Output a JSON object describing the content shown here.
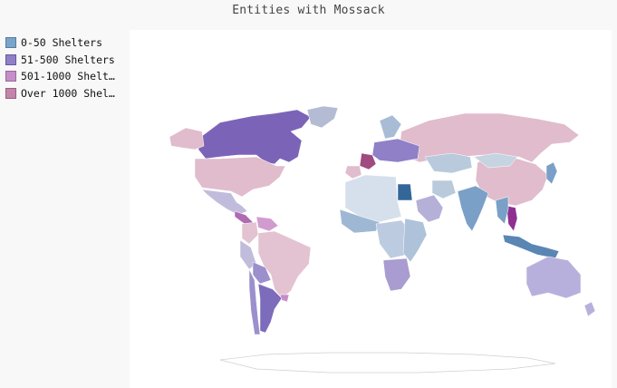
{
  "chart_data": {
    "type": "choropleth-map",
    "title": "Entities with Mossack",
    "legend_position": "top-left",
    "legend": [
      {
        "label": "0-50 Shelters",
        "color": "#7aa4c8"
      },
      {
        "label": "51-500 Shelters",
        "color": "#8f80c8"
      },
      {
        "label": "501-1000 Shelt…",
        "color": "#c58ec8"
      },
      {
        "label": "Over 1000 Shel…",
        "color": "#c286aa"
      }
    ],
    "regions": [
      {
        "name": "Canada",
        "category": "51-500 Shelters",
        "fill": "#7b64b8"
      },
      {
        "name": "Greenland",
        "category": "0-50 Shelters",
        "fill": "#b4bcd4"
      },
      {
        "name": "Alaska",
        "category": "Over 1000 Shelters",
        "fill": "#e0bccd"
      },
      {
        "name": "United States",
        "category": "Over 1000 Shelters",
        "fill": "#e0bccd"
      },
      {
        "name": "Mexico",
        "category": "51-500 Shelters",
        "fill": "#c2bcdc"
      },
      {
        "name": "Central America",
        "category": "501-1000 Shelters",
        "fill": "#b06ab2"
      },
      {
        "name": "Venezuela",
        "category": "501-1000 Shelters",
        "fill": "#d29bd0"
      },
      {
        "name": "Colombia",
        "category": "Over 1000 Shelters",
        "fill": "#e3c3d1"
      },
      {
        "name": "Brazil",
        "category": "Over 1000 Shelters",
        "fill": "#e3c3d1"
      },
      {
        "name": "Peru",
        "category": "51-500 Shelters",
        "fill": "#c2bcdc"
      },
      {
        "name": "Bolivia",
        "category": "51-500 Shelters",
        "fill": "#9c90cc"
      },
      {
        "name": "Chile",
        "category": "51-500 Shelters",
        "fill": "#9c90cc"
      },
      {
        "name": "Argentina",
        "category": "51-500 Shelters",
        "fill": "#7d6cbc"
      },
      {
        "name": "Uruguay",
        "category": "501-1000 Shelters",
        "fill": "#c58ec8"
      },
      {
        "name": "Russia",
        "category": "Over 1000 Shelters",
        "fill": "#e0bccd"
      },
      {
        "name": "China",
        "category": "Over 1000 Shelters",
        "fill": "#e0bccd"
      },
      {
        "name": "Kazakhstan",
        "category": "0-50 Shelters",
        "fill": "#b9cadc"
      },
      {
        "name": "Mongolia",
        "category": "0-50 Shelters",
        "fill": "#c6d4e2"
      },
      {
        "name": "India",
        "category": "0-50 Shelters",
        "fill": "#7aa0c8"
      },
      {
        "name": "Saudi Arabia",
        "category": "51-500 Shelters",
        "fill": "#b4b0d8"
      },
      {
        "name": "Iran",
        "category": "0-50 Shelters",
        "fill": "#b9cadc"
      },
      {
        "name": "France",
        "category": "Over 1000 Shelters",
        "fill": "#a04a82"
      },
      {
        "name": "Spain",
        "category": "Over 1000 Shelters",
        "fill": "#e0bccd"
      },
      {
        "name": "Central Europe",
        "category": "51-500 Shelters",
        "fill": "#8f80c8"
      },
      {
        "name": "Scandinavia",
        "category": "0-50 Shelters",
        "fill": "#a9bcd6"
      },
      {
        "name": "Egypt",
        "category": "0-50 Shelters",
        "fill": "#336699"
      },
      {
        "name": "North Africa",
        "category": "0-50 Shelters",
        "fill": "#d6e0ec"
      },
      {
        "name": "West Africa",
        "category": "0-50 Shelters",
        "fill": "#9eb8d4"
      },
      {
        "name": "Central Africa",
        "category": "0-50 Shelters",
        "fill": "#bccbe0"
      },
      {
        "name": "East Africa",
        "category": "0-50 Shelters",
        "fill": "#aec2da"
      },
      {
        "name": "South Africa",
        "category": "51-500 Shelters",
        "fill": "#a89cd0"
      },
      {
        "name": "Thailand",
        "category": "Over 1000 Shelters",
        "fill": "#8e3090"
      },
      {
        "name": "Southeast Asia",
        "category": "0-50 Shelters",
        "fill": "#7aa0c8"
      },
      {
        "name": "Indonesia",
        "category": "0-50 Shelters",
        "fill": "#5a86b4"
      },
      {
        "name": "Japan",
        "category": "0-50 Shelters",
        "fill": "#7aa0c8"
      },
      {
        "name": "Australia",
        "category": "51-500 Shelters",
        "fill": "#b8b0dc"
      },
      {
        "name": "New Zealand",
        "category": "51-500 Shelters",
        "fill": "#b8b0dc"
      },
      {
        "name": "Antarctica",
        "category": "none",
        "fill": "#ffffff"
      }
    ]
  }
}
